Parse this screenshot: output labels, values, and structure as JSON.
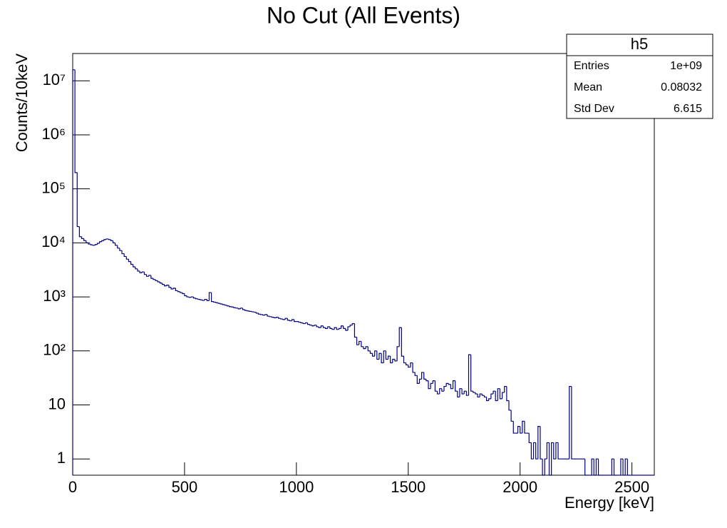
{
  "chart_data": {
    "type": "histogram",
    "title": "No Cut (All Events)",
    "x_label": "Energy [keV]",
    "y_label": "Counts/10keV",
    "log_y": true,
    "color": "#000080",
    "xlim": [
      0,
      2600
    ],
    "xticks": [
      0,
      500,
      1000,
      1500,
      2000,
      2500
    ],
    "ylim": [
      0.5,
      32000000
    ],
    "yticks": [
      1,
      10,
      {
        "value": 100,
        "label": "10²"
      },
      {
        "value": 1000,
        "label": "10³"
      },
      {
        "value": 10000,
        "label": "10⁴"
      },
      {
        "value": 100000,
        "label": "10⁵"
      },
      {
        "value": 1000000,
        "label": "10⁶"
      },
      {
        "value": 10000000,
        "label": "10⁷"
      }
    ],
    "bins": [
      0,
      10,
      20,
      30,
      40,
      50,
      60,
      70,
      80,
      90,
      100,
      110,
      120,
      130,
      140,
      150,
      160,
      170,
      180,
      190,
      200,
      210,
      220,
      230,
      240,
      250,
      260,
      270,
      280,
      290,
      300,
      310,
      320,
      330,
      340,
      350,
      360,
      370,
      380,
      390,
      400,
      410,
      420,
      430,
      440,
      450,
      460,
      470,
      480,
      490,
      500,
      510,
      520,
      530,
      540,
      550,
      560,
      570,
      580,
      590,
      600,
      610,
      620,
      630,
      640,
      650,
      660,
      670,
      680,
      690,
      700,
      710,
      720,
      730,
      740,
      750,
      760,
      770,
      780,
      790,
      800,
      810,
      820,
      830,
      840,
      850,
      860,
      870,
      880,
      890,
      900,
      910,
      920,
      930,
      940,
      950,
      960,
      970,
      980,
      990,
      1000,
      1010,
      1020,
      1030,
      1040,
      1050,
      1060,
      1070,
      1080,
      1090,
      1100,
      1110,
      1120,
      1130,
      1140,
      1150,
      1160,
      1170,
      1180,
      1190,
      1200,
      1210,
      1220,
      1230,
      1240,
      1250,
      1260,
      1270,
      1280,
      1290,
      1300,
      1310,
      1320,
      1330,
      1340,
      1350,
      1360,
      1370,
      1380,
      1390,
      1400,
      1410,
      1420,
      1430,
      1440,
      1450,
      1460,
      1470,
      1480,
      1490,
      1500,
      1510,
      1520,
      1530,
      1540,
      1550,
      1560,
      1570,
      1580,
      1590,
      1600,
      1610,
      1620,
      1630,
      1640,
      1650,
      1660,
      1670,
      1680,
      1690,
      1700,
      1710,
      1720,
      1730,
      1740,
      1750,
      1760,
      1770,
      1780,
      1790,
      1800,
      1810,
      1820,
      1830,
      1840,
      1850,
      1860,
      1870,
      1880,
      1890,
      1900,
      1910,
      1920,
      1930,
      1940,
      1950,
      1960,
      1970,
      1980,
      1990,
      2000,
      2010,
      2020,
      2030,
      2040,
      2050,
      2060,
      2070,
      2080,
      2090,
      2100,
      2110,
      2120,
      2130,
      2140,
      2150,
      2160,
      2170,
      2180,
      2190,
      2200,
      2210,
      2220,
      2230,
      2240,
      2250,
      2260,
      2270,
      2280,
      2290,
      2300,
      2310,
      2320,
      2330,
      2340,
      2350,
      2360,
      2370,
      2380,
      2390,
      2400,
      2410,
      2420,
      2430,
      2440,
      2450,
      2460,
      2470,
      2480,
      2490,
      2500,
      2510,
      2520,
      2530,
      2540,
      2550,
      2560,
      2570,
      2580,
      2590,
      2600
    ],
    "values": [
      16000000,
      200000,
      20000,
      13000,
      12000,
      11000,
      10000,
      9500,
      9200,
      9000,
      9300,
      9800,
      10500,
      11000,
      11500,
      11800,
      11500,
      11000,
      10000,
      9000,
      8000,
      7200,
      6300,
      5600,
      5000,
      4500,
      4000,
      3600,
      3300,
      3000,
      2800,
      2900,
      2600,
      2400,
      2500,
      2200,
      2100,
      2000,
      1900,
      1800,
      1700,
      1600,
      1650,
      1500,
      1400,
      1450,
      1300,
      1250,
      1200,
      1150,
      1050,
      1000,
      980,
      1000,
      950,
      920,
      900,
      880,
      860,
      900,
      850,
      1200,
      820,
      800,
      780,
      760,
      740,
      720,
      700,
      680,
      660,
      650,
      630,
      620,
      600,
      620,
      580,
      560,
      550,
      540,
      530,
      520,
      500,
      480,
      470,
      460,
      470,
      440,
      430,
      420,
      410,
      420,
      400,
      390,
      380,
      400,
      370,
      360,
      380,
      350,
      350,
      340,
      330,
      320,
      330,
      310,
      300,
      290,
      300,
      280,
      270,
      290,
      270,
      260,
      280,
      260,
      250,
      270,
      250,
      260,
      290,
      260,
      240,
      280,
      300,
      320,
      180,
      130,
      150,
      120,
      110,
      120,
      100,
      90,
      80,
      100,
      70,
      90,
      60,
      100,
      70,
      80,
      60,
      70,
      65,
      120,
      270,
      80,
      60,
      55,
      50,
      60,
      40,
      35,
      25,
      30,
      40,
      30,
      28,
      20,
      25,
      28,
      18,
      16,
      20,
      18,
      22,
      25,
      24,
      20,
      28,
      18,
      14,
      20,
      16,
      18,
      15,
      85,
      18,
      17,
      16,
      14,
      16,
      15,
      14,
      12,
      13,
      16,
      18,
      12,
      20,
      13,
      17,
      22,
      12,
      8,
      5,
      3,
      3,
      4,
      3,
      5,
      3,
      3,
      2,
      1,
      2,
      1,
      4,
      1,
      0,
      1,
      2,
      0,
      2,
      1,
      2,
      1,
      1,
      1,
      1,
      1,
      22,
      1,
      1,
      1,
      1,
      1,
      1,
      0,
      0,
      0,
      1,
      0,
      1,
      0,
      0,
      0,
      0,
      0,
      0,
      1,
      0,
      0,
      0,
      1,
      0,
      1,
      0,
      0,
      0,
      0,
      0,
      0,
      0,
      0,
      0,
      0,
      0,
      0
    ],
    "stats": {
      "name": "h5",
      "rows": [
        [
          "Entries",
          "1e+09"
        ],
        [
          "Mean",
          "0.08032"
        ],
        [
          "Std Dev",
          "6.615"
        ]
      ]
    }
  }
}
